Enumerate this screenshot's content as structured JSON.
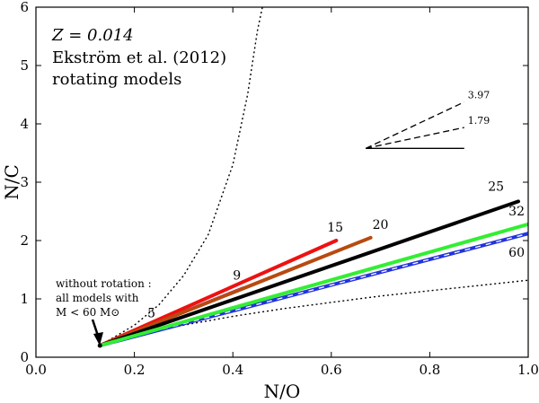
{
  "chart_data": {
    "type": "line",
    "xlabel": "N/O",
    "ylabel": "N/C",
    "xlim": [
      0.0,
      1.0
    ],
    "ylim": [
      0,
      6
    ],
    "x_ticks": [
      "0.0",
      "0.2",
      "0.4",
      "0.6",
      "0.8",
      "1.0"
    ],
    "y_ticks": [
      "0",
      "1",
      "2",
      "3",
      "4",
      "5",
      "6"
    ],
    "annotations": {
      "z_label": "Z = 0.014",
      "reference": "Ekström et al. (2012)",
      "models": "rotating models",
      "no_rotation_line1": "without rotation :",
      "no_rotation_line2": "all models with",
      "no_rotation_line3": "M < 60 M⊙"
    },
    "start_point": [
      0.13,
      0.2
    ],
    "series": [
      {
        "name": "5",
        "color": "#8b6914",
        "values": [
          [
            0.13,
            0.2
          ],
          [
            0.25,
            0.5
          ]
        ]
      },
      {
        "name": "9",
        "color": "#aa22cc",
        "values": [
          [
            0.13,
            0.2
          ],
          [
            0.42,
            1.18
          ]
        ]
      },
      {
        "name": "15",
        "color": "#ee1111",
        "values": [
          [
            0.13,
            0.2
          ],
          [
            0.61,
            2.0
          ]
        ]
      },
      {
        "name": "20",
        "color": "#b84a10",
        "values": [
          [
            0.13,
            0.2
          ],
          [
            0.68,
            2.05
          ]
        ]
      },
      {
        "name": "25",
        "color": "#000000",
        "values": [
          [
            0.13,
            0.2
          ],
          [
            0.98,
            2.67
          ]
        ]
      },
      {
        "name": "60",
        "color": "#2233dd",
        "values": [
          [
            0.13,
            0.2
          ],
          [
            1.0,
            2.12
          ]
        ]
      },
      {
        "name": "32",
        "color": "#33ee33",
        "values": [
          [
            0.13,
            0.2
          ],
          [
            1.0,
            2.28
          ]
        ]
      }
    ],
    "dotted_curves": [
      {
        "name": "upper",
        "values": [
          [
            0.13,
            0.2
          ],
          [
            0.2,
            0.55
          ],
          [
            0.25,
            0.9
          ],
          [
            0.3,
            1.4
          ],
          [
            0.35,
            2.1
          ],
          [
            0.4,
            3.3
          ],
          [
            0.43,
            4.5
          ],
          [
            0.45,
            5.6
          ],
          [
            0.46,
            6.0
          ]
        ]
      },
      {
        "name": "lower",
        "values": [
          [
            0.13,
            0.2
          ],
          [
            0.2,
            0.38
          ],
          [
            0.3,
            0.55
          ],
          [
            0.4,
            0.7
          ],
          [
            0.5,
            0.83
          ],
          [
            0.6,
            0.94
          ],
          [
            0.7,
            1.05
          ],
          [
            0.8,
            1.14
          ],
          [
            0.9,
            1.23
          ],
          [
            1.0,
            1.32
          ]
        ]
      }
    ],
    "reference_slopes": {
      "origin": [
        0.67,
        3.58
      ],
      "end_x": 0.87,
      "lines": [
        {
          "label": "3.97",
          "slope": 3.97,
          "style": "dashed"
        },
        {
          "label": "1.79",
          "slope": 1.79,
          "style": "dashed"
        },
        {
          "label": "",
          "slope": 0,
          "style": "solid"
        }
      ]
    }
  }
}
